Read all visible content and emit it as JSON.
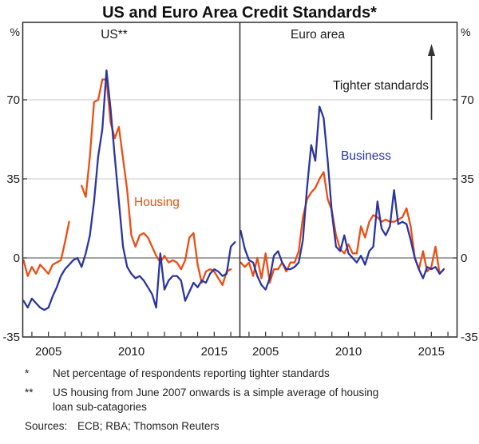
{
  "title": "US and Euro Area Credit Standards*",
  "axis": {
    "percent_left": "%",
    "percent_right": "%",
    "ytick_labels": [
      "70",
      "35",
      "0",
      "-35"
    ]
  },
  "annotation": {
    "text": "Tighter standards",
    "arrow_direction": "up"
  },
  "footnotes": [
    {
      "marker": "*",
      "lines": [
        "Net percentage of respondents reporting tighter standards"
      ]
    },
    {
      "marker": "**",
      "lines": [
        "US housing from June 2007 onwards is a simple average of housing",
        "loan sub-catagories"
      ]
    }
  ],
  "sources_label": "Sources:",
  "sources_text": "ECB; RBA; Thomson Reuters",
  "colors": {
    "housing": "#EC4D12",
    "business": "#2A35A0",
    "gridline": "#c9c9c9",
    "axis": "#2b2b2b",
    "zero_line": "#4a4a4a"
  },
  "chart_data": {
    "type": "line",
    "title": "US and Euro Area Credit Standards*",
    "unit": "%",
    "ylabel": "Net percentage reporting tighter standards",
    "ylim": [
      -35,
      104
    ],
    "gridlines": [
      70,
      35
    ],
    "zero_line": 0,
    "ytick_values": [
      70,
      35,
      0,
      -35
    ],
    "legend_position": "inline-labels",
    "x": {
      "start_year": 2003.5,
      "step_years": 0.25,
      "frequency": "quarterly",
      "axis_start": 2003.45,
      "axis_span": 13.1,
      "tick_years_minor": [
        2004,
        2005,
        2006,
        2007,
        2008,
        2009,
        2010,
        2011,
        2012,
        2013,
        2014,
        2015,
        2016
      ],
      "tick_years": [
        2005,
        2010,
        2015
      ],
      "tick_labels": [
        "2005",
        "2010",
        "2015"
      ]
    },
    "panels": [
      {
        "title": "US**",
        "series": [
          {
            "name": "Housing",
            "color": "#EC4D12",
            "values": [
              -1,
              -8,
              -4,
              -7,
              -3,
              -5,
              -7,
              -3,
              -2,
              -1,
              7,
              16,
              null,
              null,
              32,
              27,
              45,
              69,
              70,
              79,
              79,
              60,
              53,
              58,
              44,
              30,
              10,
              5,
              10,
              11,
              9,
              5,
              1,
              -2,
              1,
              -2,
              -1,
              -2,
              -5,
              -1,
              9,
              11,
              -3,
              -11,
              -6,
              -5,
              -6,
              -9,
              -12,
              -6,
              -5,
              null
            ]
          },
          {
            "name": "Business",
            "color": "#2A35A0",
            "values": [
              -19,
              -22,
              -18,
              -20,
              -22,
              -23,
              -22,
              -17,
              -13,
              -8,
              -5,
              -3,
              -1,
              0,
              -4,
              2,
              10,
              25,
              45,
              57,
              83,
              66,
              45,
              25,
              5,
              -4,
              -7,
              -9,
              -8,
              -10,
              -13,
              -16,
              -22,
              2,
              -14,
              -10,
              -8,
              -8,
              -10,
              -19,
              -15,
              -11,
              -13,
              -10,
              -11,
              -7,
              -5,
              -6,
              -8,
              -7,
              5,
              7
            ]
          }
        ]
      },
      {
        "title": "Euro area",
        "series": [
          {
            "name": "Housing",
            "color": "#EC4D12",
            "values": [
              -2,
              -4,
              -2,
              -8,
              0,
              -9,
              2,
              -11,
              -5,
              -5,
              -2,
              -6,
              -2,
              -2,
              3,
              18,
              26,
              29,
              31,
              35,
              38,
              26,
              21,
              10,
              4,
              2,
              6,
              2,
              2,
              14,
              9,
              16,
              19,
              18,
              16,
              17,
              16,
              16,
              17,
              18,
              22,
              14,
              0,
              -5,
              3,
              -6,
              -4,
              5,
              -7,
              -5,
              null,
              null
            ]
          },
          {
            "name": "Business",
            "color": "#2A35A0",
            "values": [
              12,
              4,
              -1,
              -2,
              -8,
              -12,
              -14,
              -9,
              1,
              3,
              -2,
              -5,
              -5,
              -4,
              -2,
              8,
              31,
              50,
              43,
              67,
              62,
              43,
              20,
              5,
              3,
              10,
              2,
              0,
              -2,
              1,
              -3,
              3,
              5,
              25,
              13,
              10,
              14,
              30,
              15,
              16,
              15,
              8,
              0,
              -5,
              -9,
              -4,
              -5,
              -4,
              -7,
              -5,
              null,
              null
            ]
          }
        ]
      }
    ]
  }
}
